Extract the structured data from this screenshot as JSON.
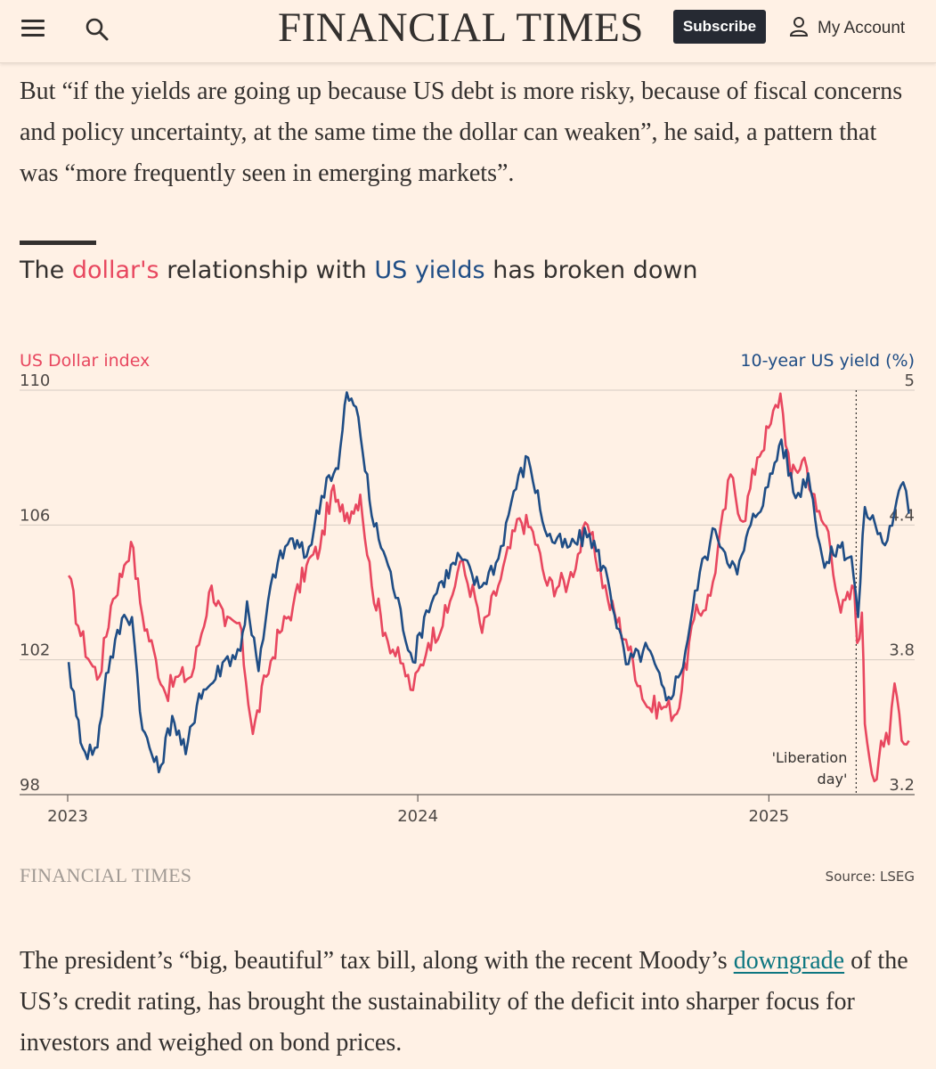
{
  "header": {
    "masthead": "FINANCIAL TIMES",
    "subscribe_label": "Subscribe",
    "account_label": "My Account",
    "icons": [
      "menu-icon",
      "search-icon",
      "user-icon"
    ]
  },
  "article": {
    "para1": "But “if the yields are going up because US debt is more risky, because of fiscal concerns and policy uncertainty, at the same time the dollar can weaken”, he said, a pattern that was “more frequently seen in emerging markets”.",
    "para2_before": "The president’s “big, beautiful” tax bill, along with the recent Moody’s ",
    "para2_link": "downgrade",
    "para2_after": " of the US’s credit rating, has brought the sustainability of the deficit into sharper focus for investors and weighed on bond prices."
  },
  "chart_title": {
    "part1": "The ",
    "highlight1": "dollar's",
    "part2": " relationship with ",
    "highlight2": "US yields",
    "part3": " has broken down"
  },
  "footer": {
    "brand": "FINANCIAL TIMES",
    "source": "Source: LSEG"
  },
  "colors": {
    "dollar": "#e8475f",
    "yield": "#1f4d85",
    "background": "#fff1e5",
    "text": "#33302e"
  },
  "chart_data": {
    "type": "line",
    "title": "The dollar's relationship with US yields has broken down",
    "left_axis_label": "US Dollar index",
    "right_axis_label": "10-year US yield (%)",
    "left_ylim": [
      98,
      110
    ],
    "right_ylim": [
      3.2,
      5
    ],
    "left_ticks": [
      98,
      102,
      106,
      110
    ],
    "right_ticks": [
      3.2,
      3.8,
      4.4,
      5
    ],
    "x_ticks": [
      "2023",
      "2024",
      "2025"
    ],
    "xlim": [
      "2023-01-01",
      "2025-06-01"
    ],
    "gridlines": true,
    "annotation": {
      "date": "2025-04-02",
      "lines": [
        "'Liberation",
        "day'"
      ]
    },
    "series": [
      {
        "name": "US Dollar index",
        "axis": "left",
        "color": "#e8475f",
        "points": [
          [
            "2023-01-02",
            104.5
          ],
          [
            "2023-01-12",
            103.0
          ],
          [
            "2023-01-25",
            101.9
          ],
          [
            "2023-02-03",
            101.5
          ],
          [
            "2023-02-15",
            103.6
          ],
          [
            "2023-03-01",
            104.8
          ],
          [
            "2023-03-08",
            105.5
          ],
          [
            "2023-03-20",
            103.3
          ],
          [
            "2023-04-03",
            102.0
          ],
          [
            "2023-04-13",
            101.0
          ],
          [
            "2023-04-26",
            101.5
          ],
          [
            "2023-05-10",
            101.5
          ],
          [
            "2023-05-31",
            104.2
          ],
          [
            "2023-06-14",
            103.0
          ],
          [
            "2023-06-29",
            103.1
          ],
          [
            "2023-07-13",
            99.8
          ],
          [
            "2023-07-27",
            101.5
          ],
          [
            "2023-08-10",
            102.8
          ],
          [
            "2023-08-24",
            103.6
          ],
          [
            "2023-09-07",
            104.8
          ],
          [
            "2023-09-21",
            105.3
          ],
          [
            "2023-10-03",
            107.0
          ],
          [
            "2023-10-12",
            106.4
          ],
          [
            "2023-10-24",
            106.4
          ],
          [
            "2023-11-02",
            106.9
          ],
          [
            "2023-11-14",
            104.2
          ],
          [
            "2023-11-28",
            102.8
          ],
          [
            "2023-12-14",
            101.9
          ],
          [
            "2023-12-27",
            101.1
          ],
          [
            "2024-01-12",
            102.5
          ],
          [
            "2024-02-01",
            103.4
          ],
          [
            "2024-02-14",
            104.9
          ],
          [
            "2024-03-01",
            103.8
          ],
          [
            "2024-03-08",
            102.8
          ],
          [
            "2024-03-25",
            104.2
          ],
          [
            "2024-04-16",
            106.2
          ],
          [
            "2024-04-30",
            105.8
          ],
          [
            "2024-05-15",
            104.2
          ],
          [
            "2024-06-06",
            104.3
          ],
          [
            "2024-06-26",
            106.0
          ],
          [
            "2024-07-17",
            103.8
          ],
          [
            "2024-08-05",
            102.6
          ],
          [
            "2024-08-27",
            100.6
          ],
          [
            "2024-09-16",
            100.6
          ],
          [
            "2024-09-27",
            100.4
          ],
          [
            "2024-10-15",
            103.2
          ],
          [
            "2024-11-01",
            103.9
          ],
          [
            "2024-11-22",
            107.5
          ],
          [
            "2024-12-05",
            106.1
          ],
          [
            "2024-12-20",
            108.0
          ],
          [
            "2025-01-03",
            109.0
          ],
          [
            "2025-01-13",
            109.9
          ],
          [
            "2025-01-24",
            107.4
          ],
          [
            "2025-02-07",
            108.0
          ],
          [
            "2025-02-20",
            106.4
          ],
          [
            "2025-03-04",
            105.8
          ],
          [
            "2025-03-17",
            103.4
          ],
          [
            "2025-03-31",
            104.1
          ],
          [
            "2025-04-03",
            102.5
          ],
          [
            "2025-04-08",
            103.4
          ],
          [
            "2025-04-11",
            100.1
          ],
          [
            "2025-04-21",
            98.4
          ],
          [
            "2025-04-28",
            99.6
          ],
          [
            "2025-05-06",
            99.5
          ],
          [
            "2025-05-12",
            101.3
          ],
          [
            "2025-05-22",
            99.5
          ],
          [
            "2025-05-27",
            99.6
          ]
        ]
      },
      {
        "name": "10-year US yield (%)",
        "axis": "right",
        "color": "#1f4d85",
        "points": [
          [
            "2023-01-02",
            3.79
          ],
          [
            "2023-01-10",
            3.55
          ],
          [
            "2023-01-19",
            3.39
          ],
          [
            "2023-02-01",
            3.41
          ],
          [
            "2023-02-10",
            3.74
          ],
          [
            "2023-03-01",
            4.0
          ],
          [
            "2023-03-09",
            3.99
          ],
          [
            "2023-03-20",
            3.49
          ],
          [
            "2023-04-06",
            3.3
          ],
          [
            "2023-04-20",
            3.55
          ],
          [
            "2023-05-04",
            3.38
          ],
          [
            "2023-05-18",
            3.65
          ],
          [
            "2023-05-30",
            3.69
          ],
          [
            "2023-06-14",
            3.8
          ],
          [
            "2023-06-30",
            3.84
          ],
          [
            "2023-07-07",
            4.06
          ],
          [
            "2023-07-19",
            3.75
          ],
          [
            "2023-08-03",
            4.18
          ],
          [
            "2023-08-21",
            4.34
          ],
          [
            "2023-09-07",
            4.26
          ],
          [
            "2023-09-28",
            4.61
          ],
          [
            "2023-10-10",
            4.65
          ],
          [
            "2023-10-19",
            4.99
          ],
          [
            "2023-10-31",
            4.88
          ],
          [
            "2023-11-14",
            4.44
          ],
          [
            "2023-12-01",
            4.22
          ],
          [
            "2023-12-27",
            3.79
          ],
          [
            "2024-01-10",
            4.02
          ],
          [
            "2024-01-26",
            4.15
          ],
          [
            "2024-02-14",
            4.26
          ],
          [
            "2024-03-05",
            4.12
          ],
          [
            "2024-03-25",
            4.25
          ],
          [
            "2024-04-10",
            4.55
          ],
          [
            "2024-04-25",
            4.7
          ],
          [
            "2024-05-15",
            4.35
          ],
          [
            "2024-06-05",
            4.3
          ],
          [
            "2024-06-28",
            4.36
          ],
          [
            "2024-07-17",
            4.16
          ],
          [
            "2024-08-05",
            3.78
          ],
          [
            "2024-08-28",
            3.85
          ],
          [
            "2024-09-16",
            3.62
          ],
          [
            "2024-10-01",
            3.74
          ],
          [
            "2024-10-21",
            4.19
          ],
          [
            "2024-11-06",
            4.38
          ],
          [
            "2024-11-29",
            4.18
          ],
          [
            "2024-12-13",
            4.4
          ],
          [
            "2024-12-31",
            4.57
          ],
          [
            "2025-01-14",
            4.78
          ],
          [
            "2025-01-29",
            4.52
          ],
          [
            "2025-02-11",
            4.63
          ],
          [
            "2025-02-28",
            4.21
          ],
          [
            "2025-03-14",
            4.31
          ],
          [
            "2025-03-28",
            4.26
          ],
          [
            "2025-04-04",
            3.99
          ],
          [
            "2025-04-11",
            4.48
          ],
          [
            "2025-04-22",
            4.4
          ],
          [
            "2025-05-02",
            4.31
          ],
          [
            "2025-05-12",
            4.46
          ],
          [
            "2025-05-21",
            4.59
          ],
          [
            "2025-05-27",
            4.45
          ]
        ]
      }
    ]
  }
}
